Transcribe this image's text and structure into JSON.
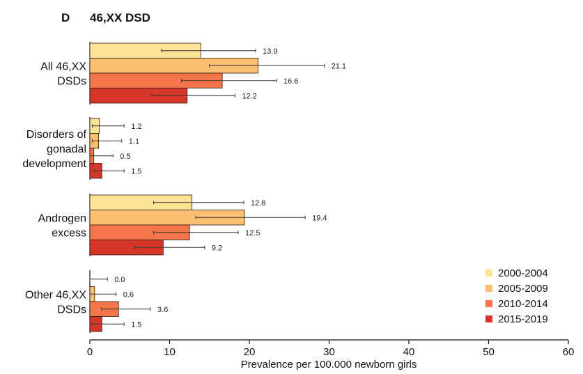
{
  "panel_letter": "D",
  "chart_data": {
    "type": "bar",
    "orientation": "horizontal",
    "title": "46,XX DSD",
    "xlabel": "Prevalence per 100.000 newborn girls",
    "xlim": [
      0,
      60
    ],
    "xticks": [
      "0",
      "10",
      "20",
      "30",
      "40",
      "50",
      "60"
    ],
    "xtick_values": [
      0,
      10,
      20,
      30,
      40,
      50,
      60
    ],
    "legend_position": "bottom-right",
    "series": [
      {
        "name": "2000-2004",
        "color": "#fde395"
      },
      {
        "name": "2005-2009",
        "color": "#fbbf72"
      },
      {
        "name": "2010-2014",
        "color": "#f4764a"
      },
      {
        "name": "2015-2019",
        "color": "#d63628"
      }
    ],
    "categories": [
      {
        "label_lines": [
          "All 46,XX",
          "DSDs"
        ],
        "values": [
          13.9,
          21.1,
          16.6,
          12.2
        ],
        "labels": [
          "13.9",
          "21.1",
          "16.6",
          "12.2"
        ],
        "ci_low": [
          9.0,
          15.0,
          11.5,
          7.8
        ],
        "ci_high": [
          20.8,
          29.4,
          23.4,
          18.2
        ]
      },
      {
        "label_lines": [
          "Disorders of",
          "gonadal",
          "development"
        ],
        "values": [
          1.2,
          1.1,
          0.5,
          1.5
        ],
        "labels": [
          "1.2",
          "1.1",
          "0.5",
          "1.5"
        ],
        "ci_low": [
          0.3,
          0.3,
          0.0,
          0.6
        ],
        "ci_high": [
          4.3,
          4.0,
          2.9,
          4.3
        ]
      },
      {
        "label_lines": [
          "Androgen",
          "excess"
        ],
        "values": [
          12.8,
          19.4,
          12.5,
          9.2
        ],
        "labels": [
          "12.8",
          "19.4",
          "12.5",
          "9.2"
        ],
        "ci_low": [
          8.0,
          13.3,
          8.0,
          5.6
        ],
        "ci_high": [
          19.3,
          27.0,
          18.6,
          14.4
        ]
      },
      {
        "label_lines": [
          "Other 46,XX",
          "DSDs"
        ],
        "values": [
          0.0,
          0.6,
          3.6,
          1.5
        ],
        "labels": [
          "0.0",
          "0.6",
          "3.6",
          "1.5"
        ],
        "ci_low": [
          0.0,
          0.0,
          1.5,
          0.3
        ],
        "ci_high": [
          2.2,
          3.3,
          7.6,
          4.3
        ]
      }
    ]
  }
}
